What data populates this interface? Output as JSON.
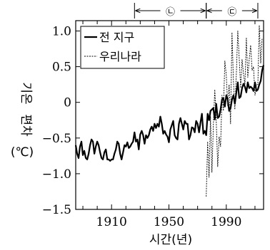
{
  "chart_data": {
    "type": "line",
    "title": "",
    "xlabel": "시간(년)",
    "ylabel_lines": [
      "기온",
      "편차",
      "(℃)"
    ],
    "xlim": [
      1885,
      2016
    ],
    "ylim": [
      -1.5,
      1.1
    ],
    "xticks": [
      1910,
      1950,
      1990
    ],
    "yticks": [
      1.0,
      0.5,
      0,
      -0.5,
      -1.0,
      -1.5
    ],
    "ytick_labels": [
      "1.0",
      "0.5",
      "0",
      "−0.5",
      "−1.0",
      "−1.5"
    ],
    "legend_position": "top-left",
    "period_markers": [
      {
        "label": "㉡",
        "start": 1926,
        "end": 1976
      },
      {
        "label": "㉢",
        "start": 1976,
        "end": 2012
      }
    ],
    "series": [
      {
        "name": "전 지구",
        "style": "solid",
        "color": "#000000",
        "x": [
          1885,
          1886,
          1887,
          1888,
          1889,
          1890,
          1891,
          1892,
          1893,
          1894,
          1895,
          1896,
          1897,
          1898,
          1899,
          1900,
          1901,
          1902,
          1903,
          1904,
          1905,
          1906,
          1907,
          1908,
          1909,
          1910,
          1911,
          1912,
          1913,
          1914,
          1915,
          1916,
          1917,
          1918,
          1919,
          1920,
          1921,
          1922,
          1923,
          1924,
          1925,
          1926,
          1927,
          1928,
          1929,
          1930,
          1931,
          1932,
          1933,
          1934,
          1935,
          1936,
          1937,
          1938,
          1939,
          1940,
          1941,
          1942,
          1943,
          1944,
          1945,
          1946,
          1947,
          1948,
          1949,
          1950,
          1951,
          1952,
          1953,
          1954,
          1955,
          1956,
          1957,
          1958,
          1959,
          1960,
          1961,
          1962,
          1963,
          1964,
          1965,
          1966,
          1967,
          1968,
          1969,
          1970,
          1971,
          1972,
          1973,
          1974,
          1975,
          1976,
          1977,
          1978,
          1979,
          1980,
          1981,
          1982,
          1983,
          1984,
          1985,
          1986,
          1987,
          1988,
          1989,
          1990,
          1991,
          1992,
          1993,
          1994,
          1995,
          1996,
          1997,
          1998,
          1999,
          2000,
          2001,
          2002,
          2003,
          2004,
          2005,
          2006,
          2007,
          2008,
          2009,
          2010,
          2011,
          2012,
          2013,
          2014,
          2015,
          2016
        ],
        "values": [
          -0.6,
          -0.72,
          -0.78,
          -0.62,
          -0.55,
          -0.74,
          -0.68,
          -0.78,
          -0.8,
          -0.72,
          -0.6,
          -0.52,
          -0.55,
          -0.72,
          -0.62,
          -0.55,
          -0.6,
          -0.7,
          -0.78,
          -0.8,
          -0.7,
          -0.66,
          -0.8,
          -0.8,
          -0.82,
          -0.8,
          -0.8,
          -0.72,
          -0.66,
          -0.55,
          -0.58,
          -0.72,
          -0.8,
          -0.7,
          -0.6,
          -0.62,
          -0.56,
          -0.64,
          -0.62,
          -0.58,
          -0.55,
          -0.42,
          -0.55,
          -0.52,
          -0.66,
          -0.45,
          -0.4,
          -0.46,
          -0.58,
          -0.46,
          -0.5,
          -0.46,
          -0.38,
          -0.34,
          -0.4,
          -0.3,
          -0.36,
          -0.3,
          -0.34,
          -0.2,
          -0.3,
          -0.44,
          -0.4,
          -0.45,
          -0.48,
          -0.56,
          -0.38,
          -0.32,
          -0.26,
          -0.46,
          -0.5,
          -0.52,
          -0.3,
          -0.22,
          -0.3,
          -0.38,
          -0.26,
          -0.3,
          -0.3,
          -0.52,
          -0.46,
          -0.35,
          -0.36,
          -0.42,
          -0.26,
          -0.3,
          -0.42,
          -0.28,
          -0.16,
          -0.44,
          -0.4,
          -0.46,
          -0.16,
          -0.25,
          -0.12,
          -0.1,
          -0.08,
          -0.24,
          -0.02,
          -0.22,
          -0.2,
          -0.1,
          0.04,
          0.06,
          -0.06,
          0.1,
          0.04,
          -0.12,
          -0.08,
          0.04,
          0.1,
          -0.02,
          0.14,
          0.28,
          0.06,
          0.08,
          0.2,
          0.26,
          0.22,
          0.14,
          0.28,
          0.2,
          0.22,
          0.2,
          0.16,
          0.28,
          0.16,
          0.18,
          0.25,
          0.3,
          0.45,
          0.52
        ]
      },
      {
        "name": "우리나라",
        "style": "dashed",
        "color": "#000000",
        "x": [
          1976,
          1977,
          1978,
          1979,
          1980,
          1981,
          1982,
          1983,
          1984,
          1985,
          1986,
          1987,
          1988,
          1989,
          1990,
          1991,
          1992,
          1993,
          1994,
          1995,
          1996,
          1997,
          1998,
          1999,
          2000,
          2001,
          2002,
          2003,
          2004,
          2005,
          2006,
          2007,
          2008,
          2009,
          2010,
          2011,
          2012,
          2013,
          2014,
          2015
        ],
        "values": [
          -1.32,
          -0.55,
          -1.05,
          -0.2,
          -0.98,
          -0.32,
          0.18,
          -0.25,
          -0.9,
          -0.48,
          -0.62,
          0.1,
          -0.12,
          0.58,
          0.38,
          -0.05,
          0.25,
          -0.3,
          0.98,
          0.3,
          -0.1,
          0.4,
          1.0,
          0.62,
          0.2,
          0.6,
          0.4,
          0.25,
          0.9,
          0.35,
          0.6,
          0.8,
          0.45,
          0.5,
          0.1,
          0.25,
          0.25,
          1.08,
          0.55,
          0.9
        ]
      }
    ]
  }
}
